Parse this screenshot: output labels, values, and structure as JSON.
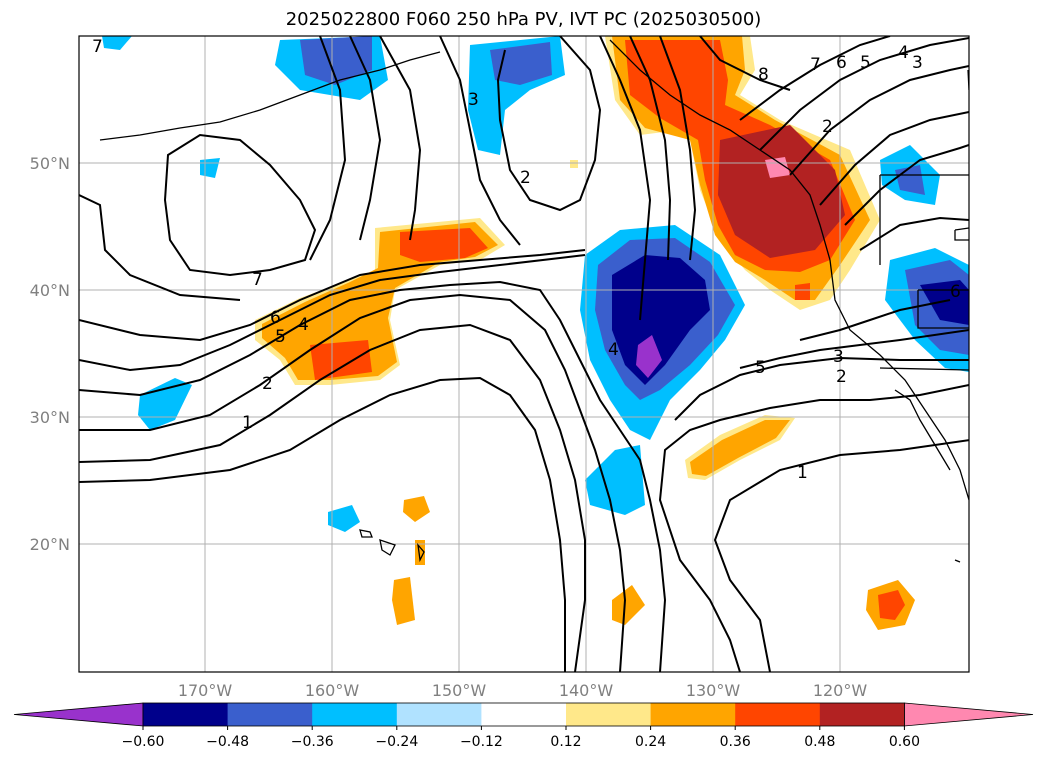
{
  "title": "2025022800 F060 250 hPa PV, IVT PC (2025030500)",
  "lat_labels": [
    "50°N",
    "40°N",
    "30°N",
    "20°N"
  ],
  "lon_labels": [
    "170°W",
    "160°W",
    "150°W",
    "140°W",
    "130°W",
    "120°W"
  ],
  "colorbar": {
    "ticks": [
      "−0.60",
      "−0.48",
      "−0.36",
      "−0.24",
      "−0.12",
      "0.12",
      "0.24",
      "0.36",
      "0.48",
      "0.60"
    ],
    "colors": [
      "#9932cc",
      "#00008b",
      "#3a5fcd",
      "#00bfff",
      "#b0e2ff",
      "#ffffff",
      "#ffe88a",
      "#ffa500",
      "#ff4500",
      "#b22222",
      "#ff88b0"
    ]
  },
  "contour_labels": [
    "7",
    "3",
    "2",
    "7",
    "6",
    "5",
    "4",
    "2",
    "1",
    "4",
    "5",
    "3",
    "2",
    "1",
    "8",
    "7",
    "6",
    "5",
    "4",
    "3",
    "2",
    "6"
  ]
}
